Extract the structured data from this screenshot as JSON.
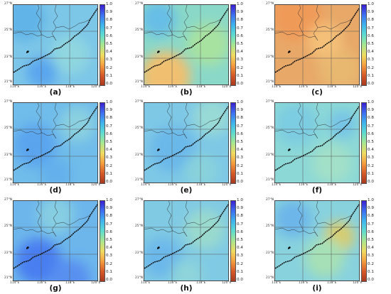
{
  "colorbar": {
    "ticks": [
      "1.0",
      "0.9",
      "0.8",
      "0.7",
      "0.6",
      "0.5",
      "0.4",
      "0.3",
      "0.2",
      "0.1",
      "0.0"
    ],
    "colors": [
      "#3a1fd0",
      "#3f6ff0",
      "#3fb4ee",
      "#5fdcd0",
      "#a8e690",
      "#f0dc60",
      "#f4a040",
      "#d85a28",
      "#a83820"
    ]
  },
  "axes": {
    "lat_labels": [
      "27°N",
      "25°N",
      "23°N",
      "21°N"
    ],
    "lon_labels": [
      "114°E",
      "116°E",
      "118°E",
      "120°E"
    ]
  },
  "panels": [
    {
      "label": "(a)",
      "base": "#7cc6e8",
      "patches": [
        {
          "c": "#60b4e8",
          "x": 15,
          "y": 20,
          "r": 30
        },
        {
          "c": "#8fd6e0",
          "x": 80,
          "y": 70,
          "r": 28
        },
        {
          "c": "#5aa6ee",
          "x": 40,
          "y": 95,
          "r": 22
        }
      ]
    },
    {
      "label": "(b)",
      "base": "#8ad8c8",
      "patches": [
        {
          "c": "#f0c070",
          "x": 30,
          "y": 100,
          "r": 35
        },
        {
          "c": "#a8e2a0",
          "x": 90,
          "y": 55,
          "r": 30
        },
        {
          "c": "#66bee6",
          "x": 20,
          "y": 20,
          "r": 25
        }
      ]
    },
    {
      "label": "(c)",
      "base": "#e8a868",
      "patches": [
        {
          "c": "#f09a58",
          "x": 30,
          "y": 15,
          "r": 35
        },
        {
          "c": "#e8b870",
          "x": 90,
          "y": 90,
          "r": 30
        },
        {
          "c": "#f4c078",
          "x": 70,
          "y": 50,
          "r": 25
        }
      ]
    },
    {
      "label": "(d)",
      "base": "#70bcea",
      "patches": [
        {
          "c": "#5aa4ee",
          "x": 30,
          "y": 60,
          "r": 30
        },
        {
          "c": "#8ad0e0",
          "x": 90,
          "y": 30,
          "r": 25
        },
        {
          "c": "#64b0ec",
          "x": 60,
          "y": 100,
          "r": 22
        }
      ]
    },
    {
      "label": "(e)",
      "base": "#7ec8e6",
      "patches": [
        {
          "c": "#6ab8ea",
          "x": 40,
          "y": 65,
          "r": 32
        },
        {
          "c": "#98dad6",
          "x": 95,
          "y": 20,
          "r": 26
        },
        {
          "c": "#88d2dc",
          "x": 80,
          "y": 95,
          "r": 24
        }
      ]
    },
    {
      "label": "(f)",
      "base": "#8cd8d6",
      "patches": [
        {
          "c": "#7ccce2",
          "x": 30,
          "y": 30,
          "r": 30
        },
        {
          "c": "#a2e0c8",
          "x": 80,
          "y": 85,
          "r": 28
        },
        {
          "c": "#76c4e6",
          "x": 95,
          "y": 30,
          "r": 20
        }
      ]
    },
    {
      "label": "(g)",
      "base": "#6cb6ec",
      "patches": [
        {
          "c": "#4a7ef0",
          "x": 35,
          "y": 85,
          "r": 32
        },
        {
          "c": "#5890f0",
          "x": 80,
          "y": 110,
          "r": 28
        },
        {
          "c": "#86cee2",
          "x": 60,
          "y": 20,
          "r": 26
        }
      ]
    },
    {
      "label": "(h)",
      "base": "#80cae4",
      "patches": [
        {
          "c": "#6cb8ea",
          "x": 25,
          "y": 80,
          "r": 28
        },
        {
          "c": "#9adace",
          "x": 85,
          "y": 40,
          "r": 28
        },
        {
          "c": "#8ed4da",
          "x": 60,
          "y": 105,
          "r": 22
        }
      ]
    },
    {
      "label": "(i)",
      "base": "#88d2de",
      "patches": [
        {
          "c": "#d8cc70",
          "x": 90,
          "y": 50,
          "r": 22
        },
        {
          "c": "#a6e0b6",
          "x": 70,
          "y": 80,
          "r": 28
        },
        {
          "c": "#6cb6ea",
          "x": 25,
          "y": 25,
          "r": 26
        }
      ]
    }
  ]
}
